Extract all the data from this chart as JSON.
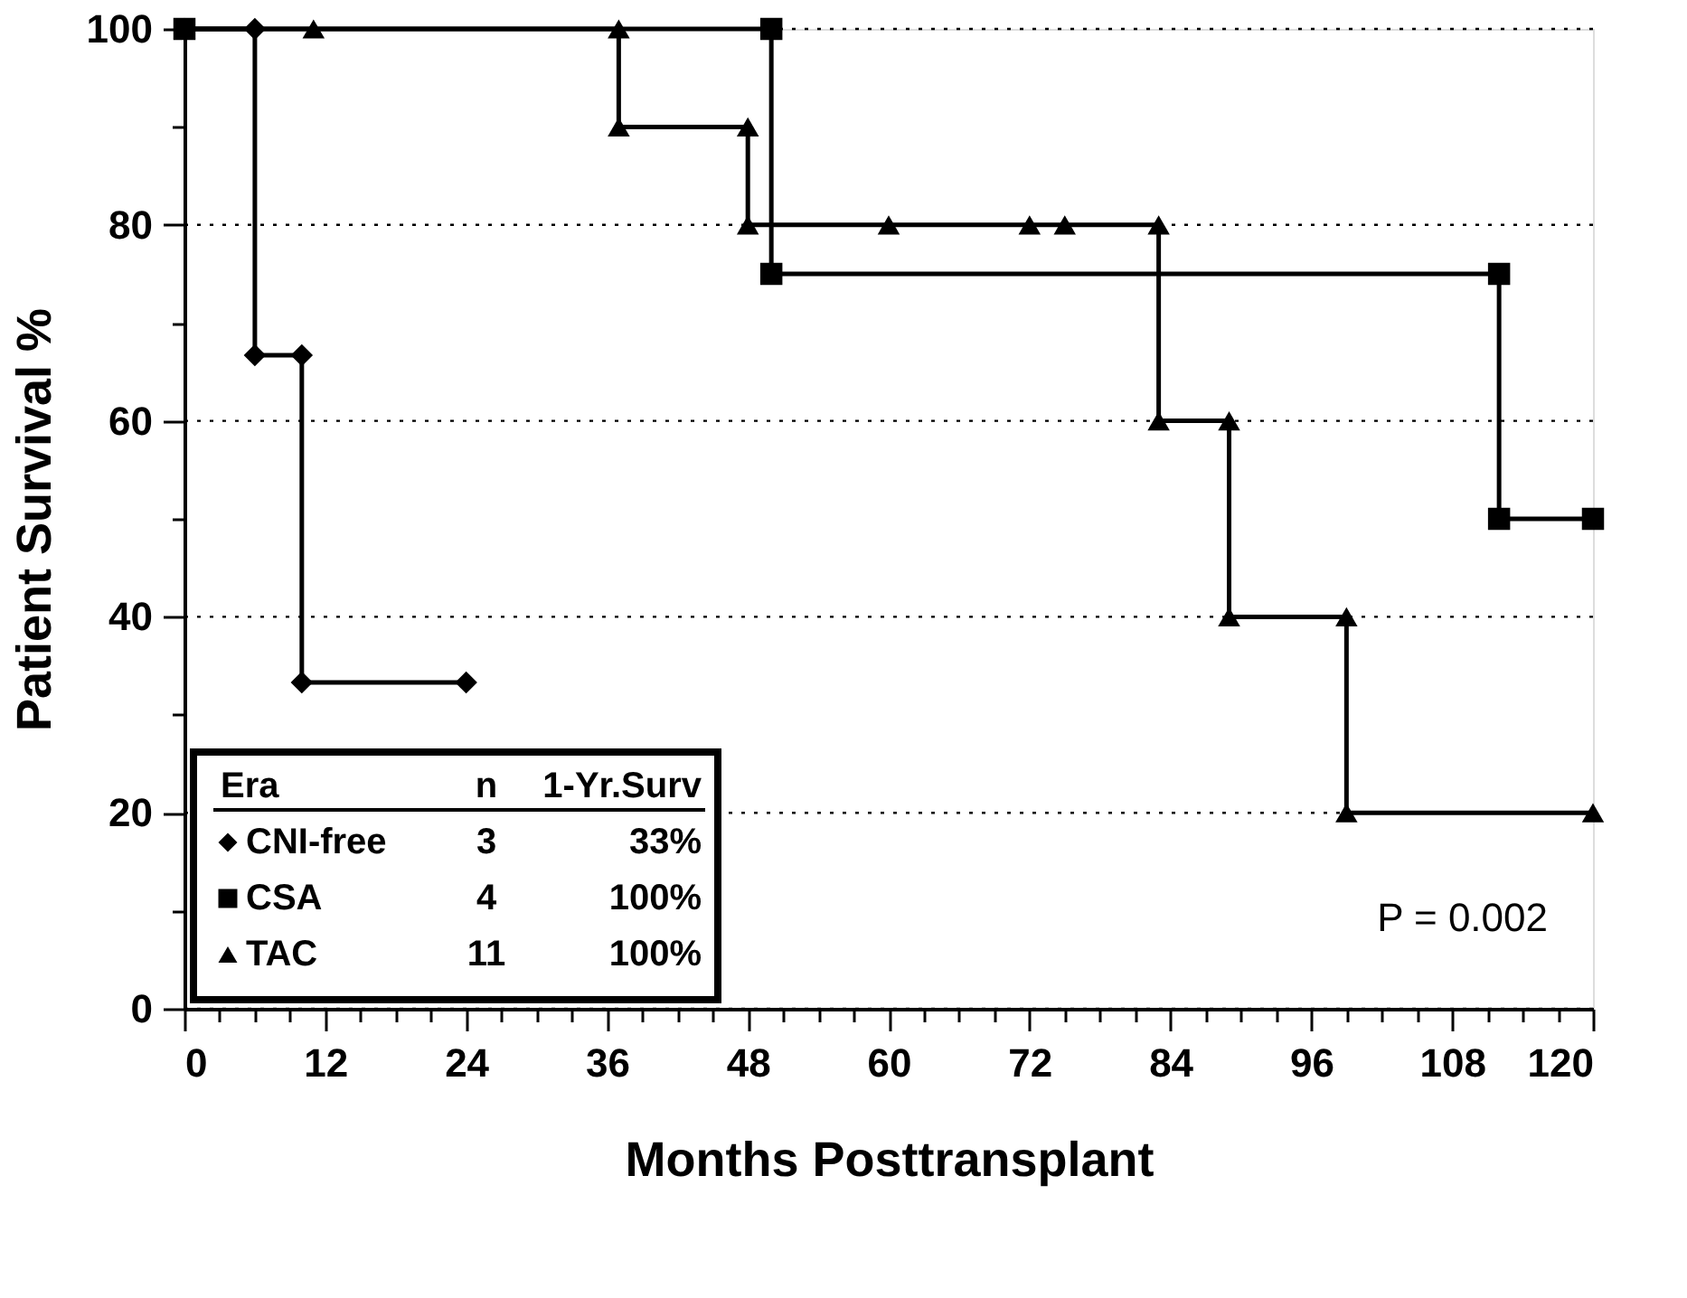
{
  "chart_data": {
    "type": "line",
    "xlabel": "Months Posttransplant",
    "ylabel": "Patient Survival %",
    "legend_title": "Era",
    "legend": "bottom left",
    "grid": "y",
    "line_style": "solid",
    "xlim": [
      0,
      120
    ],
    "ylim": [
      0,
      100
    ],
    "xticks": [
      0,
      {
        "value": 3,
        "label": null
      },
      {
        "value": 6,
        "label": null
      },
      {
        "value": 9,
        "label": null
      },
      12,
      {
        "value": 15,
        "label": null
      },
      {
        "value": 18,
        "label": null
      },
      {
        "value": 21,
        "label": null
      },
      24,
      {
        "value": 27,
        "label": null
      },
      {
        "value": 30,
        "label": null
      },
      {
        "value": 33,
        "label": null
      },
      36,
      {
        "value": 39,
        "label": null
      },
      {
        "value": 42,
        "label": null
      },
      {
        "value": 45,
        "label": null
      },
      48,
      {
        "value": 51,
        "label": null
      },
      {
        "value": 54,
        "label": null
      },
      {
        "value": 57,
        "label": null
      },
      60,
      {
        "value": 63,
        "label": null
      },
      {
        "value": 66,
        "label": null
      },
      {
        "value": 69,
        "label": null
      },
      72,
      {
        "value": 75,
        "label": null
      },
      {
        "value": 78,
        "label": null
      },
      {
        "value": 81,
        "label": null
      },
      84,
      {
        "value": 87,
        "label": null
      },
      {
        "value": 90,
        "label": null
      },
      {
        "value": 93,
        "label": null
      },
      96,
      {
        "value": 99,
        "label": null
      },
      {
        "value": 102,
        "label": null
      },
      {
        "value": 105,
        "label": null
      },
      108,
      {
        "value": 111,
        "label": null
      },
      {
        "value": 114,
        "label": null
      },
      {
        "value": 117,
        "label": null
      },
      120
    ],
    "yticks": [
      0,
      {
        "value": 10,
        "label": null
      },
      20,
      {
        "value": 30,
        "label": null
      },
      40,
      {
        "value": 50,
        "label": null
      },
      60,
      {
        "value": 70,
        "label": null
      },
      80,
      {
        "value": 90,
        "label": null
      },
      100
    ],
    "series": [
      {
        "name": "CNI-free",
        "color": "#000000",
        "marker": "diamond",
        "x": [
          0,
          6,
          6,
          10,
          10,
          24
        ],
        "values": [
          100,
          100,
          66.7,
          66.7,
          33.3,
          33.3
        ]
      },
      {
        "name": "CSA",
        "color": "#000000",
        "marker": "square",
        "x": [
          0,
          50,
          50,
          112,
          112,
          120
        ],
        "values": [
          100,
          100,
          75,
          75,
          50,
          50
        ]
      },
      {
        "name": "TAC",
        "color": "#000000",
        "marker": "triangle",
        "x": [
          0,
          11,
          37,
          37,
          48,
          48,
          60,
          72,
          75,
          83,
          83,
          89,
          89,
          99,
          99,
          120
        ],
        "values": [
          100,
          100,
          100,
          90,
          90,
          80,
          80,
          80,
          80,
          80,
          60,
          60,
          40,
          40,
          20,
          20
        ]
      }
    ],
    "annotations": [
      "n",
      "1-Yr.Surv",
      "3",
      "33%",
      "4",
      "100%",
      "11",
      "100%",
      "P = 0.002"
    ]
  }
}
